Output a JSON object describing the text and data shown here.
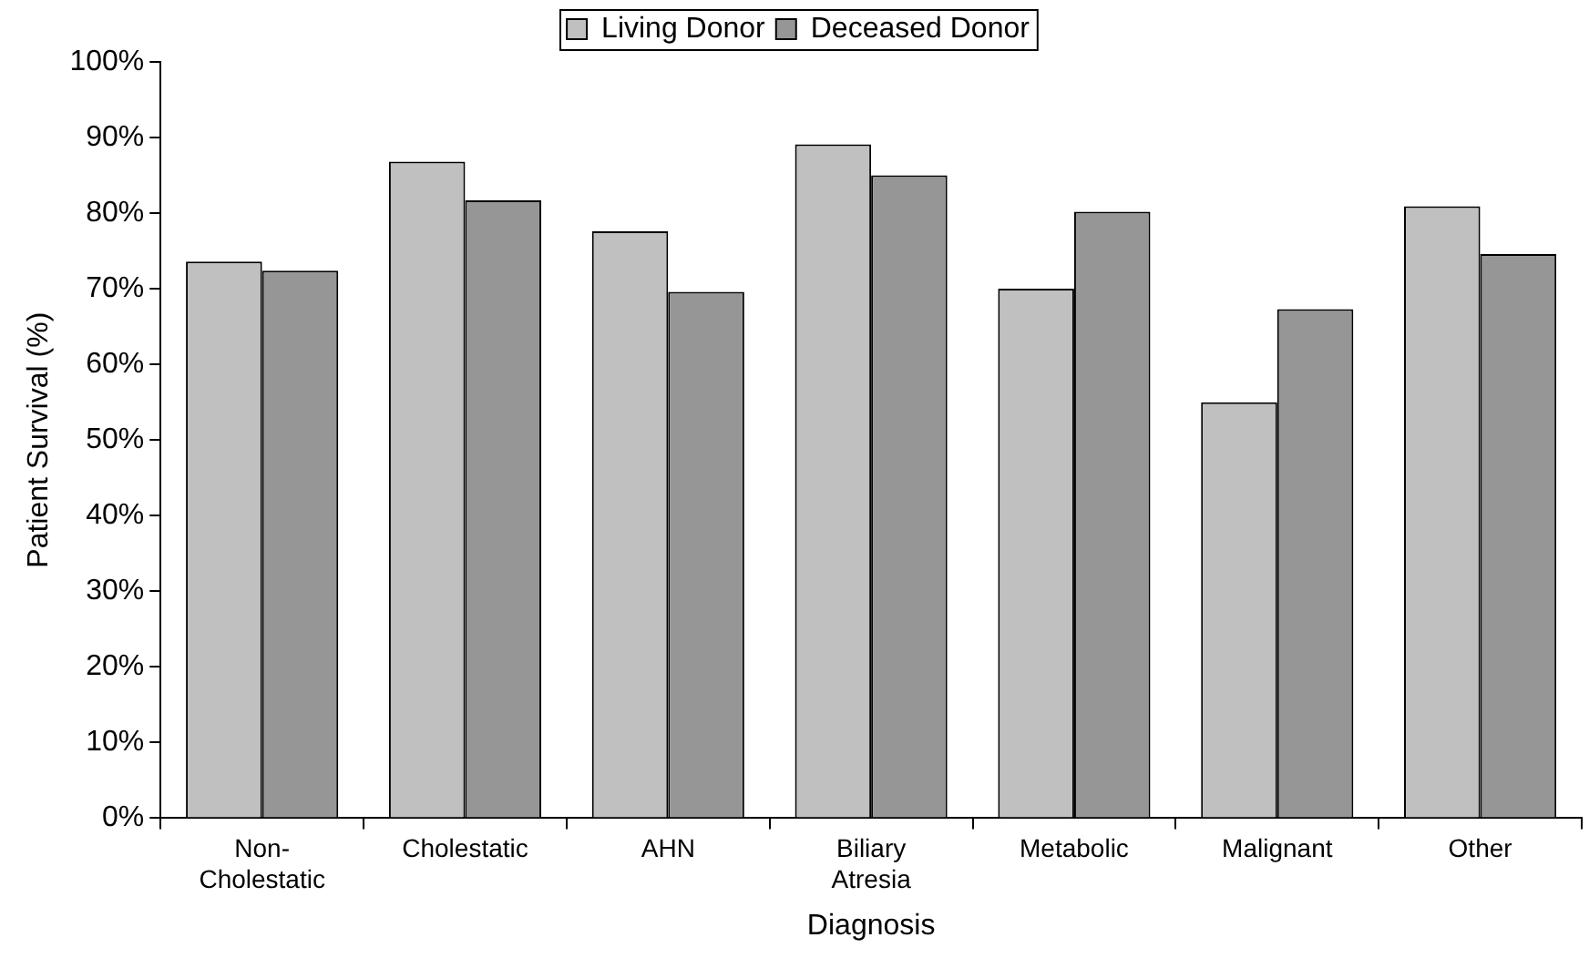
{
  "chart_data": {
    "type": "bar",
    "xlabel": "Diagnosis",
    "ylabel": "Patient Survival (%)",
    "categories": [
      "Non-\nCholestatic",
      "Cholestatic",
      "AHN",
      "Biliary\nAtresia",
      "Metabolic",
      "Malignant",
      "Other"
    ],
    "series": [
      {
        "name": "Living Donor",
        "color": "#c0c0c0",
        "values": [
          73.6,
          86.8,
          77.6,
          89.1,
          70.0,
          55.0,
          80.9
        ]
      },
      {
        "name": "Deceased Donor",
        "color": "#969696",
        "values": [
          72.4,
          81.7,
          69.6,
          85.0,
          80.2,
          67.3,
          74.6
        ]
      }
    ],
    "ylim": [
      0,
      100
    ],
    "yticks": [
      {
        "value": 0,
        "label": "0%"
      },
      {
        "value": 10,
        "label": "10%"
      },
      {
        "value": 20,
        "label": "20%"
      },
      {
        "value": 30,
        "label": "30%"
      },
      {
        "value": 40,
        "label": "40%"
      },
      {
        "value": 50,
        "label": "50%"
      },
      {
        "value": 60,
        "label": "60%"
      },
      {
        "value": 70,
        "label": "70%"
      },
      {
        "value": 80,
        "label": "80%"
      },
      {
        "value": 90,
        "label": "90%"
      },
      {
        "value": 100,
        "label": "100%"
      }
    ],
    "grid": false,
    "legend": "top"
  }
}
